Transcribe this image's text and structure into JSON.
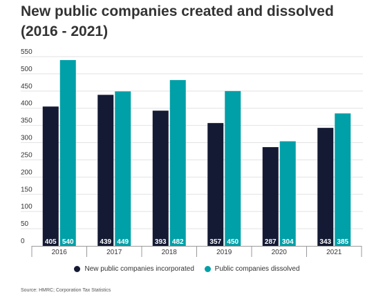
{
  "colors": {
    "incorporated": "#141a33",
    "dissolved": "#00a0a8",
    "grid": "#e2e2e2",
    "axis": "#999999"
  },
  "source": "Source: HMRC; Corporation Tax Statistics",
  "chart_data": {
    "type": "bar",
    "title": "New public companies created and dissolved (2016 - 2021)",
    "xlabel": "",
    "ylabel": "",
    "ylim": [
      0,
      550
    ],
    "yticks": [
      0,
      50,
      100,
      150,
      200,
      250,
      300,
      350,
      400,
      450,
      500,
      550
    ],
    "grid": true,
    "legend_position": "bottom",
    "categories": [
      "2016",
      "2017",
      "2018",
      "2019",
      "2020",
      "2021"
    ],
    "series": [
      {
        "name": "New public companies incorporated",
        "values": [
          405,
          439,
          393,
          357,
          287,
          343
        ]
      },
      {
        "name": "Public companies dissolved",
        "values": [
          540,
          449,
          482,
          450,
          304,
          385
        ]
      }
    ]
  }
}
